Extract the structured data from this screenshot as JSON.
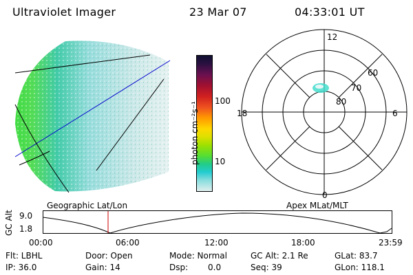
{
  "header": {
    "title": "Ultraviolet Imager",
    "date": "23 Mar 07",
    "time": "04:33:01 UT"
  },
  "colorbar": {
    "unit_label": "photon cm⁻²s⁻¹",
    "ticks": [
      "100",
      "10"
    ]
  },
  "polar_plot": {
    "mlt_labels": {
      "top": "12",
      "left": "18",
      "right": "6",
      "bottom": "0"
    },
    "lat_labels": [
      "60",
      "70",
      "80"
    ]
  },
  "altitude_strip": {
    "left_title": "Geographic Lat/Lon",
    "right_title": "Apex MLat/MLT",
    "axis_label": "GC Alt",
    "y_ticks": [
      "9.0",
      "1.8"
    ],
    "x_ticks": [
      "00:00",
      "06:00",
      "12:00",
      "18:00",
      "23:59"
    ]
  },
  "info": {
    "filter": "Flt: LBHL",
    "ip": "IP: 36.0",
    "door": "Door: Open",
    "gain": "Gain: 14",
    "mode": "Mode: Normal",
    "dsp_label": "Dsp:",
    "dsp_value": "0.0",
    "gc_alt": "GC Alt: 2.1 Re",
    "seq": "Seq: 39",
    "glat": "GLat: 83.7",
    "glon": "GLon: 118.1"
  },
  "colors": {
    "marker": "#cc0000",
    "meridian_line": "#0000cc"
  }
}
